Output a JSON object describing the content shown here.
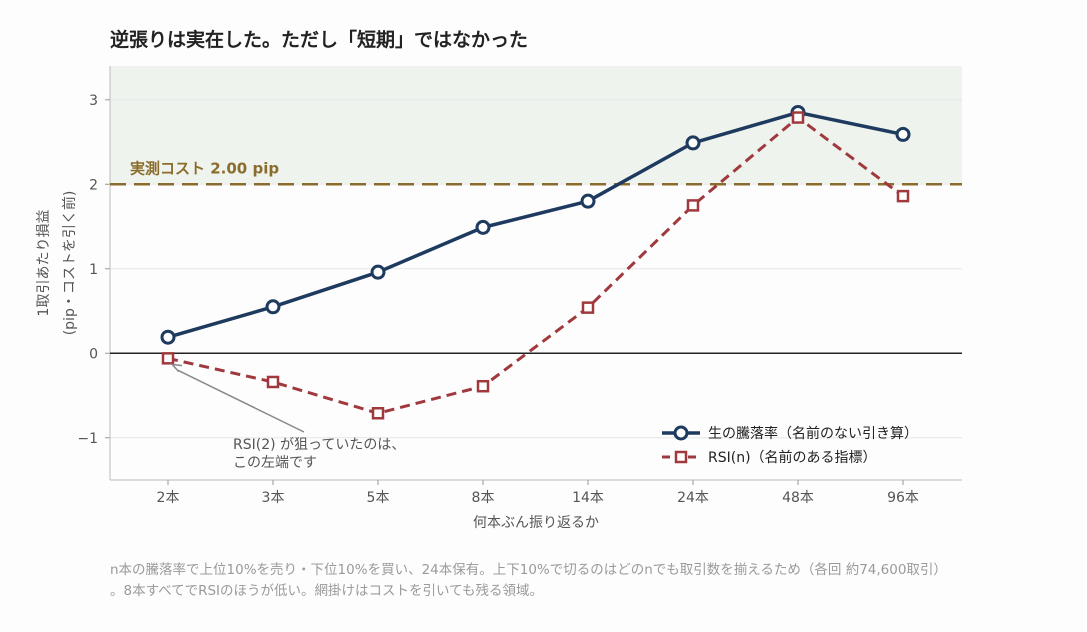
{
  "chart_data": {
    "type": "line",
    "title": "逆張りは実在した。ただし「短期」ではなかった",
    "xlabel": "何本ぶん振り返るか",
    "ylabel": [
      "1取引あたり損益",
      "(pip・コストを引く前)"
    ],
    "categories": [
      "2本",
      "3本",
      "5本",
      "8本",
      "14本",
      "24本",
      "48本",
      "96本"
    ],
    "ylim": [
      -1.5,
      3.4
    ],
    "yticks": [
      3,
      2,
      1,
      0,
      -1
    ],
    "ytick_labels": [
      "3",
      "2",
      "1",
      "0",
      "−1"
    ],
    "series": [
      {
        "name": "生の騰落率（名前のない引き算）",
        "color": "#1f3a5f",
        "marker": "circle",
        "style": "solid",
        "values": [
          0.19,
          0.55,
          0.96,
          1.49,
          1.8,
          2.49,
          2.85,
          2.59
        ]
      },
      {
        "name": "RSI(n)（名前のある指標）",
        "color": "#a0393d",
        "marker": "square",
        "style": "dashed",
        "values": [
          -0.06,
          -0.34,
          -0.71,
          -0.39,
          0.54,
          1.75,
          2.79,
          1.86
        ]
      }
    ],
    "reference_line": {
      "value": 2.0,
      "label": "実測コスト 2.00 pip",
      "color": "#8a6d2c"
    },
    "shaded_region": {
      "from": 2.0,
      "to": 3.4,
      "color": "#eef3ee"
    },
    "annotation": {
      "lines": [
        "RSI(2) が狙っていたのは、",
        "この左端です"
      ],
      "target_category": "2本",
      "target_series": 1
    },
    "legend_position": "bottom-right",
    "grid": true
  },
  "caption": {
    "line1": "n本の騰落率で上位10%を売り・下位10%を買い、24本保有。上下10%で切るのはどのnでも取引数を揃えるため（各回 約74,600取引）",
    "line2": "。8本すべてでRSIのほうが低い。網掛けはコストを引いても残る領域。"
  }
}
